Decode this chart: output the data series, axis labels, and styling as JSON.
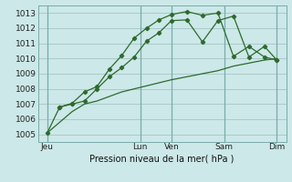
{
  "bg_color": "#cce8e8",
  "grid_color": "#aacaca",
  "line_color": "#2d6a2d",
  "title": "Pression niveau de la mer( hPa )",
  "ylim": [
    1004.5,
    1013.5
  ],
  "yticks": [
    1005,
    1006,
    1007,
    1008,
    1009,
    1010,
    1011,
    1012,
    1013
  ],
  "xlim": [
    0,
    8.0
  ],
  "day_positions": [
    0.3,
    3.3,
    4.3,
    6.0,
    7.7
  ],
  "day_labels": [
    "Jeu",
    "Lun",
    "Ven",
    "Sam",
    "Dim"
  ],
  "vline_positions": [
    0.3,
    3.3,
    4.3,
    6.0,
    7.7
  ],
  "line1_x": [
    0.3,
    0.7,
    1.1,
    1.5,
    1.9,
    2.3,
    2.7,
    3.1,
    3.5,
    3.9,
    4.3,
    4.8,
    5.3,
    5.8,
    6.3,
    6.8,
    7.3,
    7.7
  ],
  "line1_y": [
    1005.1,
    1005.8,
    1006.5,
    1007.0,
    1007.2,
    1007.5,
    1007.8,
    1008.0,
    1008.2,
    1008.4,
    1008.6,
    1008.8,
    1009.0,
    1009.2,
    1009.5,
    1009.7,
    1009.9,
    1010.0
  ],
  "line2_x": [
    0.3,
    0.7,
    1.1,
    1.5,
    1.9,
    2.3,
    2.7,
    3.1,
    3.5,
    3.9,
    4.3,
    4.8,
    5.3,
    5.8,
    6.3,
    6.8,
    7.3,
    7.7
  ],
  "line2_y": [
    1005.1,
    1006.8,
    1007.0,
    1007.2,
    1008.0,
    1008.8,
    1009.4,
    1010.1,
    1011.15,
    1011.7,
    1012.5,
    1012.55,
    1011.1,
    1012.5,
    1012.8,
    1010.1,
    1010.8,
    1009.9
  ],
  "line3_x": [
    0.7,
    1.1,
    1.5,
    1.9,
    2.3,
    2.7,
    3.1,
    3.5,
    3.9,
    4.3,
    4.8,
    5.3,
    5.8,
    6.3,
    6.8,
    7.3,
    7.7
  ],
  "line3_y": [
    1006.8,
    1007.05,
    1007.8,
    1008.15,
    1009.3,
    1010.2,
    1011.35,
    1012.0,
    1012.55,
    1012.9,
    1013.1,
    1012.85,
    1013.0,
    1010.15,
    1010.8,
    1010.1,
    1009.9
  ]
}
